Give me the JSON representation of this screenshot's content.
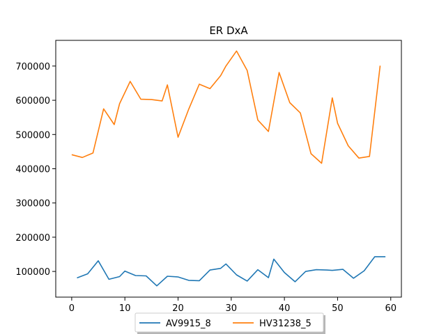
{
  "chart_data": {
    "type": "line",
    "title": "ER DxA",
    "xlabel": "",
    "ylabel": "",
    "xlim": [
      -3,
      62
    ],
    "ylim": [
      25000,
      775000
    ],
    "xticks": [
      0,
      10,
      20,
      30,
      40,
      50,
      60
    ],
    "yticks": [
      100000,
      200000,
      300000,
      400000,
      500000,
      600000,
      700000
    ],
    "grid": false,
    "legend": {
      "placement": "bottom-center",
      "ncol": 2
    },
    "series": [
      {
        "name": "AV9915_8",
        "color": "#1f77b4",
        "x": [
          1,
          3,
          5,
          7,
          9,
          10,
          12,
          14,
          16,
          18,
          20,
          22,
          24,
          26,
          28,
          29,
          31,
          33,
          35,
          37,
          38,
          40,
          42,
          44,
          46,
          48,
          49,
          51,
          53,
          55,
          57,
          59
        ],
        "y": [
          81000,
          93000,
          131000,
          77000,
          85000,
          101000,
          88000,
          87000,
          58000,
          86000,
          84000,
          74000,
          73000,
          104000,
          109000,
          122000,
          90000,
          72000,
          105000,
          82000,
          136000,
          97000,
          70000,
          100000,
          105000,
          104000,
          103000,
          106000,
          80000,
          102000,
          143000,
          143000
        ]
      },
      {
        "name": "HV31238_5",
        "color": "#ff7f0e",
        "x": [
          0,
          2,
          4,
          6,
          8,
          9,
          11,
          13,
          15,
          17,
          18,
          20,
          22,
          24,
          26,
          28,
          29,
          31,
          33,
          35,
          37,
          39,
          41,
          43,
          45,
          47,
          49,
          50,
          52,
          54,
          56,
          58
        ],
        "y": [
          441000,
          433000,
          446000,
          575000,
          529000,
          590000,
          655000,
          603000,
          602000,
          598000,
          645000,
          492000,
          574000,
          647000,
          634000,
          672000,
          700000,
          744000,
          687000,
          542000,
          509000,
          681000,
          593000,
          563000,
          444000,
          416000,
          607000,
          533000,
          467000,
          431000,
          436000,
          701000
        ]
      }
    ]
  }
}
